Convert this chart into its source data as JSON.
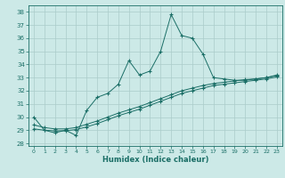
{
  "title": "",
  "xlabel": "Humidex (Indice chaleur)",
  "background_color": "#cce9e7",
  "grid_color": "#aaccca",
  "line_color": "#1a6e66",
  "xlim": [
    -0.5,
    23.5
  ],
  "ylim": [
    27.8,
    38.5
  ],
  "yticks": [
    28,
    29,
    30,
    31,
    32,
    33,
    34,
    35,
    36,
    37,
    38
  ],
  "xticks": [
    0,
    1,
    2,
    3,
    4,
    5,
    6,
    7,
    8,
    9,
    10,
    11,
    12,
    13,
    14,
    15,
    16,
    17,
    18,
    19,
    20,
    21,
    22,
    23
  ],
  "line1_x": [
    0,
    1,
    2,
    3,
    4,
    5,
    6,
    7,
    8,
    9,
    10,
    11,
    12,
    13,
    14,
    15,
    16,
    17,
    18,
    19,
    20,
    21,
    22,
    23
  ],
  "line1_y": [
    30.0,
    29.0,
    28.8,
    29.0,
    28.6,
    30.5,
    31.5,
    31.8,
    32.5,
    34.3,
    33.2,
    33.5,
    35.0,
    37.8,
    36.2,
    36.0,
    34.8,
    33.0,
    32.9,
    32.8,
    32.8,
    32.9,
    33.0,
    33.2
  ],
  "line2_x": [
    0,
    1,
    2,
    3,
    4,
    5,
    6,
    7,
    8,
    9,
    10,
    11,
    12,
    13,
    14,
    15,
    16,
    17,
    18,
    19,
    20,
    21,
    22,
    23
  ],
  "line2_y": [
    29.4,
    29.2,
    29.1,
    29.1,
    29.2,
    29.45,
    29.7,
    30.0,
    30.3,
    30.55,
    30.8,
    31.1,
    31.4,
    31.7,
    32.0,
    32.2,
    32.4,
    32.55,
    32.65,
    32.75,
    32.85,
    32.9,
    33.0,
    33.15
  ],
  "line3_x": [
    0,
    1,
    2,
    3,
    4,
    5,
    6,
    7,
    8,
    9,
    10,
    11,
    12,
    13,
    14,
    15,
    16,
    17,
    18,
    19,
    20,
    21,
    22,
    23
  ],
  "line3_y": [
    29.1,
    29.0,
    28.95,
    28.95,
    29.05,
    29.25,
    29.5,
    29.8,
    30.1,
    30.35,
    30.6,
    30.9,
    31.2,
    31.5,
    31.8,
    32.0,
    32.2,
    32.4,
    32.5,
    32.6,
    32.7,
    32.8,
    32.9,
    33.05
  ]
}
